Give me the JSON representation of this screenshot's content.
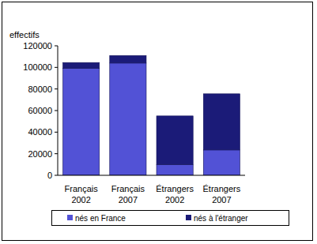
{
  "chart_data": {
    "type": "bar",
    "stacked": true,
    "y_label": "effectifs",
    "categories": [
      "Français 2002",
      "Français 2007",
      "Étrangers 2002",
      "Étrangers 2007"
    ],
    "series": [
      {
        "name": "nés en France",
        "color": "#5252d6",
        "values": [
          99000,
          104000,
          10000,
          23500
        ]
      },
      {
        "name": "nés à l'étranger",
        "color": "#1b1b78",
        "values": [
          5500,
          7000,
          45000,
          52000
        ]
      }
    ],
    "ylim": [
      0,
      120000
    ],
    "yticks": [
      0,
      20000,
      40000,
      60000,
      80000,
      100000,
      120000
    ],
    "grid": false,
    "legend": "bottom"
  }
}
